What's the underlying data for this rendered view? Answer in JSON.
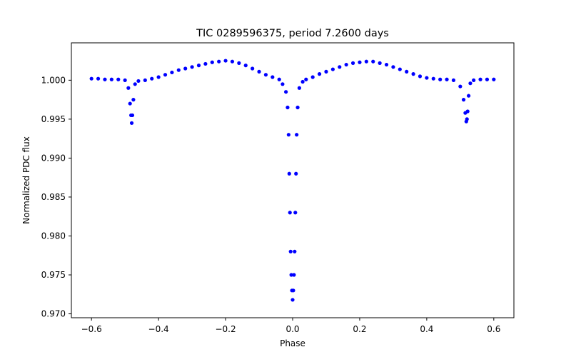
{
  "chart_data": {
    "type": "scatter",
    "title": "TIC 0289596375, period 7.2600 days",
    "xlabel": "Phase",
    "ylabel": "Normalized PDC flux",
    "xlim": [
      -0.66,
      0.66
    ],
    "ylim": [
      0.9695,
      1.0048
    ],
    "xticks": [
      -0.6,
      -0.4,
      -0.2,
      0.0,
      0.2,
      0.4,
      0.6
    ],
    "xtick_labels": [
      "−0.6",
      "−0.4",
      "−0.2",
      "0.0",
      "0.2",
      "0.4",
      "0.6"
    ],
    "yticks": [
      0.97,
      0.975,
      0.98,
      0.985,
      0.99,
      0.995,
      1.0
    ],
    "ytick_labels": [
      "0.970",
      "0.975",
      "0.980",
      "0.985",
      "0.990",
      "0.995",
      "1.000"
    ],
    "grid": false,
    "marker_color": "#0000ff",
    "series": [
      {
        "name": "",
        "x": [
          -0.6,
          -0.58,
          -0.56,
          -0.54,
          -0.52,
          -0.5,
          -0.49,
          -0.485,
          -0.482,
          -0.48,
          -0.478,
          -0.475,
          -0.47,
          -0.46,
          -0.44,
          -0.42,
          -0.4,
          -0.38,
          -0.36,
          -0.34,
          -0.32,
          -0.3,
          -0.28,
          -0.26,
          -0.24,
          -0.22,
          -0.2,
          -0.18,
          -0.16,
          -0.14,
          -0.12,
          -0.1,
          -0.08,
          -0.06,
          -0.04,
          -0.03,
          -0.02,
          -0.015,
          -0.012,
          -0.01,
          -0.008,
          -0.006,
          -0.004,
          -0.002,
          0.0,
          0.002,
          0.004,
          0.006,
          0.008,
          0.01,
          0.012,
          0.015,
          0.02,
          0.03,
          0.04,
          0.06,
          0.08,
          0.1,
          0.12,
          0.14,
          0.16,
          0.18,
          0.2,
          0.22,
          0.24,
          0.26,
          0.28,
          0.3,
          0.32,
          0.34,
          0.36,
          0.38,
          0.4,
          0.42,
          0.44,
          0.46,
          0.48,
          0.5,
          0.51,
          0.515,
          0.518,
          0.52,
          0.522,
          0.525,
          0.53,
          0.54,
          0.56,
          0.58,
          0.6
        ],
        "y": [
          1.0002,
          1.0002,
          1.0001,
          1.0001,
          1.0001,
          1.0,
          0.999,
          0.997,
          0.9955,
          0.9945,
          0.9955,
          0.9975,
          0.9995,
          0.9999,
          1.0,
          1.0002,
          1.0004,
          1.0007,
          1.001,
          1.0013,
          1.0015,
          1.0017,
          1.0019,
          1.0021,
          1.0023,
          1.0024,
          1.0025,
          1.0024,
          1.0022,
          1.0019,
          1.0015,
          1.0011,
          1.0007,
          1.0004,
          1.0001,
          0.9995,
          0.9985,
          0.9965,
          0.993,
          0.988,
          0.983,
          0.978,
          0.975,
          0.973,
          0.9718,
          0.973,
          0.975,
          0.978,
          0.983,
          0.988,
          0.993,
          0.9965,
          0.999,
          0.9998,
          1.0001,
          1.0004,
          1.0008,
          1.0011,
          1.0014,
          1.0017,
          1.002,
          1.0022,
          1.0023,
          1.0024,
          1.0024,
          1.0022,
          1.002,
          1.0017,
          1.0014,
          1.0011,
          1.0008,
          1.0005,
          1.0003,
          1.0002,
          1.0001,
          1.0001,
          1.0,
          0.9992,
          0.9975,
          0.9958,
          0.9947,
          0.995,
          0.996,
          0.998,
          0.9996,
          1.0,
          1.0001,
          1.0001,
          1.0001
        ]
      }
    ]
  }
}
